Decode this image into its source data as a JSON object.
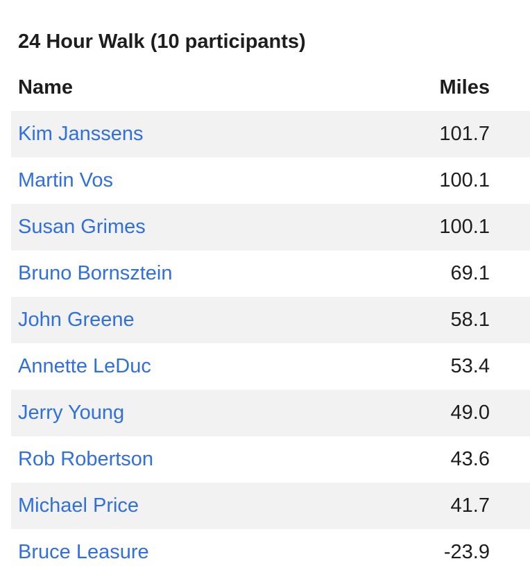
{
  "page": {
    "title": "24 Hour Walk (10 participants)"
  },
  "table": {
    "headers": {
      "name": "Name",
      "miles": "Miles"
    },
    "rows": [
      {
        "name": "Kim Janssens",
        "miles": "101.7"
      },
      {
        "name": "Martin Vos",
        "miles": "100.1"
      },
      {
        "name": "Susan Grimes",
        "miles": "100.1"
      },
      {
        "name": "Bruno Bornsztein",
        "miles": "69.1"
      },
      {
        "name": "John Greene",
        "miles": "58.1"
      },
      {
        "name": "Annette LeDuc",
        "miles": "53.4"
      },
      {
        "name": "Jerry Young",
        "miles": "49.0"
      },
      {
        "name": "Rob Robertson",
        "miles": "43.6"
      },
      {
        "name": "Michael Price",
        "miles": "41.7"
      },
      {
        "name": "Bruce Leasure",
        "miles": "-23.9"
      }
    ]
  },
  "colors": {
    "link": "#2f6fe0",
    "stripe": "#f2f2f2",
    "text": "#1d1d1f"
  }
}
